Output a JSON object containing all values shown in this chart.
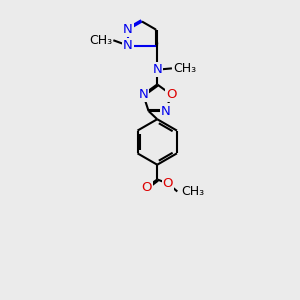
{
  "bg_color": "#ebebeb",
  "bond_color": "#000000",
  "n_color": "#0000ee",
  "o_color": "#dd0000",
  "line_width": 1.5,
  "font_size": 9.5,
  "fig_size": [
    3.0,
    3.0
  ],
  "dpi": 100,
  "layout": {
    "xlim": [
      20,
      80
    ],
    "ylim": [
      -5,
      105
    ]
  }
}
